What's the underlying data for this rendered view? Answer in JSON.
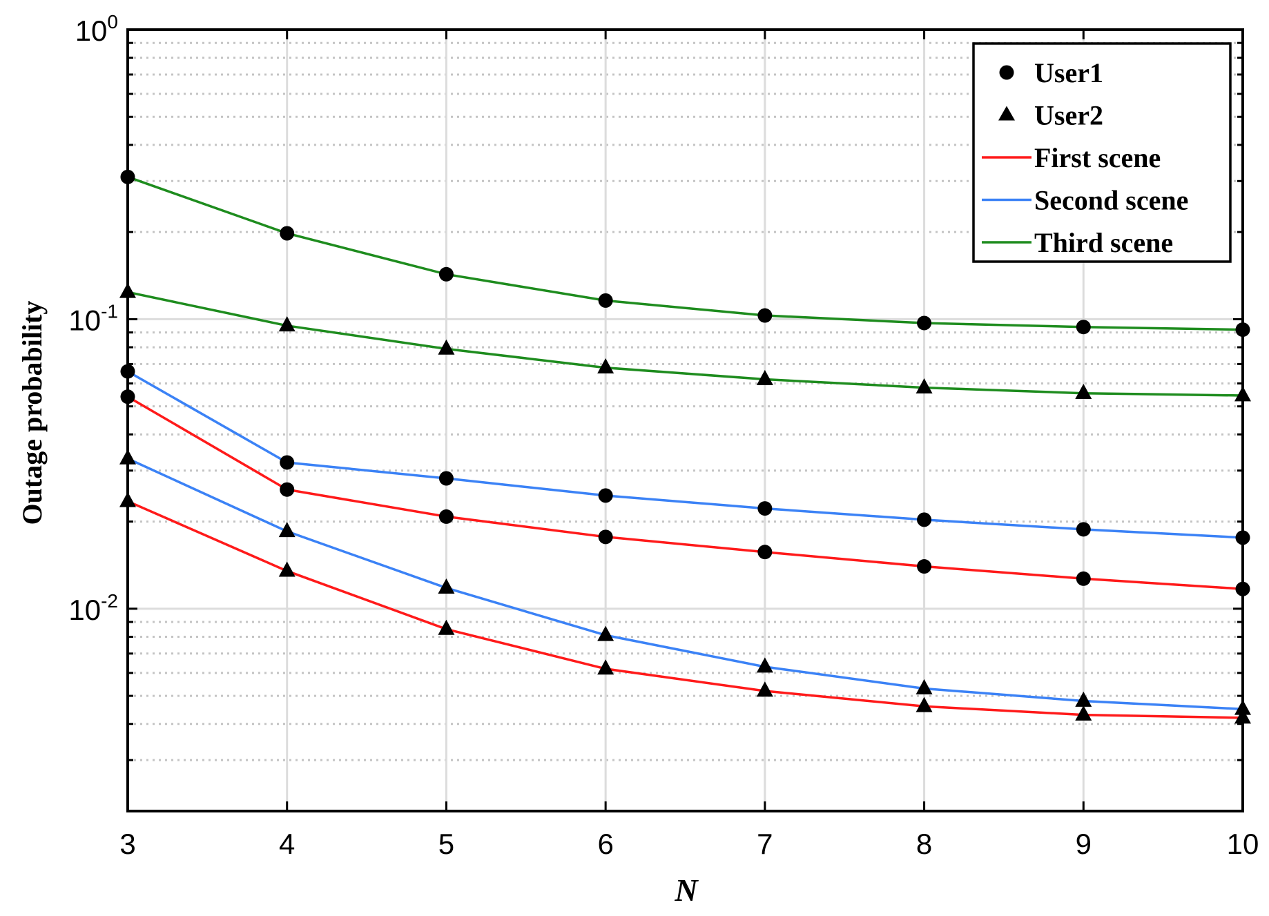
{
  "chart_data": {
    "type": "line",
    "xlabel": "N",
    "ylabel": "Outage probability",
    "yscale": "log",
    "xlim": [
      3,
      10
    ],
    "ylim": [
      0.002,
      1
    ],
    "grid": true,
    "legend_position": "top-right",
    "x": [
      3,
      4,
      5,
      6,
      7,
      8,
      9,
      10
    ],
    "x_ticks": [
      "3",
      "4",
      "5",
      "6",
      "7",
      "8",
      "9",
      "10"
    ],
    "y_ticks": [
      {
        "value": 1,
        "base": "10",
        "exp": "0"
      },
      {
        "value": 0.1,
        "base": "10",
        "exp": "-1"
      },
      {
        "value": 0.01,
        "base": "10",
        "exp": "-2"
      }
    ],
    "legend": [
      {
        "label": "User1",
        "kind": "marker",
        "marker": "circle"
      },
      {
        "label": "User2",
        "kind": "marker",
        "marker": "triangle"
      },
      {
        "label": "First scene",
        "kind": "line",
        "color": "#ff1a1a"
      },
      {
        "label": "Second scene",
        "kind": "line",
        "color": "#3b82f6"
      },
      {
        "label": "Third scene",
        "kind": "line",
        "color": "#1e8c1e"
      }
    ],
    "series": [
      {
        "scene": "Third scene",
        "user": "User1",
        "color": "#1e8c1e",
        "marker": "circle",
        "values": [
          0.31,
          0.198,
          0.143,
          0.116,
          0.103,
          0.097,
          0.094,
          0.092
        ]
      },
      {
        "scene": "Third scene",
        "user": "User2",
        "color": "#1e8c1e",
        "marker": "triangle",
        "values": [
          0.124,
          0.095,
          0.079,
          0.068,
          0.062,
          0.058,
          0.0555,
          0.0545
        ]
      },
      {
        "scene": "Second scene",
        "user": "User1",
        "color": "#3b82f6",
        "marker": "circle",
        "values": [
          0.066,
          0.032,
          0.0282,
          0.0246,
          0.0222,
          0.0203,
          0.0188,
          0.0176
        ]
      },
      {
        "scene": "Second scene",
        "user": "User2",
        "color": "#3b82f6",
        "marker": "triangle",
        "values": [
          0.033,
          0.0185,
          0.0118,
          0.0081,
          0.0063,
          0.0053,
          0.0048,
          0.0045
        ]
      },
      {
        "scene": "First scene",
        "user": "User1",
        "color": "#ff1a1a",
        "marker": "circle",
        "values": [
          0.054,
          0.0258,
          0.0208,
          0.0177,
          0.0157,
          0.014,
          0.0127,
          0.0117
        ]
      },
      {
        "scene": "First scene",
        "user": "User2",
        "color": "#ff1a1a",
        "marker": "triangle",
        "values": [
          0.0235,
          0.0135,
          0.0085,
          0.0062,
          0.0052,
          0.0046,
          0.0043,
          0.0042
        ]
      }
    ]
  }
}
